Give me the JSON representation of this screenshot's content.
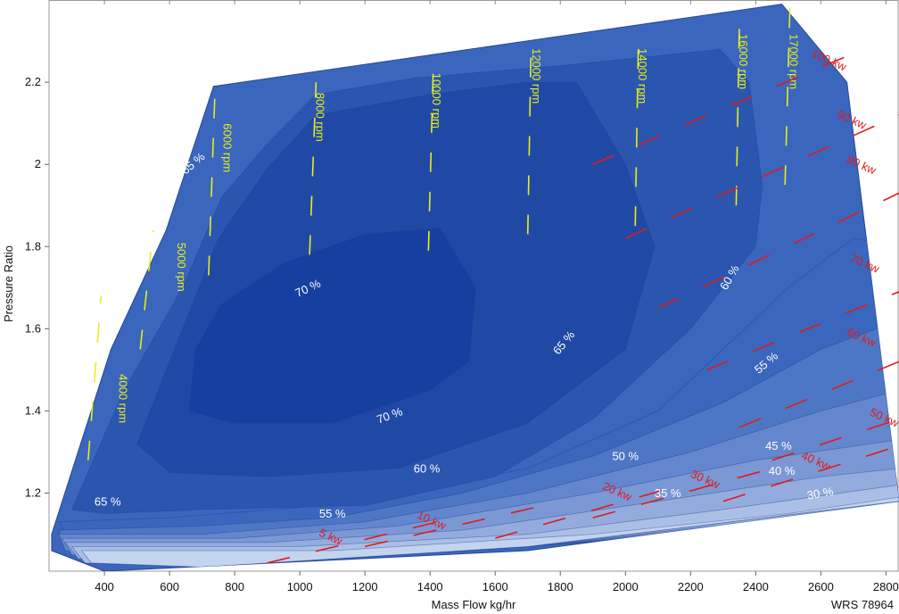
{
  "chart_data": {
    "type": "contour",
    "title": "",
    "xlabel": "Mass Flow kg/hr",
    "ylabel": "Pressure Ratio",
    "tag": "WRS 78964",
    "xlim": [
      230,
      2840
    ],
    "ylim": [
      1.01,
      2.4
    ],
    "xticks": [
      {
        "value": 400,
        "label": "400"
      },
      {
        "value": 600,
        "label": "600"
      },
      {
        "value": 800,
        "label": "800"
      },
      {
        "value": 1000,
        "label": "1000"
      },
      {
        "value": 1200,
        "label": "1200"
      },
      {
        "value": 1400,
        "label": "1400"
      },
      {
        "value": 1600,
        "label": "1600"
      },
      {
        "value": 1800,
        "label": "1800"
      },
      {
        "value": 2000,
        "label": "2000"
      },
      {
        "value": 2200,
        "label": "2200"
      },
      {
        "value": 2400,
        "label": "2400"
      },
      {
        "value": 2600,
        "label": "2600"
      },
      {
        "value": 2800,
        "label": "2800"
      }
    ],
    "yticks": [
      {
        "value": 1.2,
        "label": "1.2"
      },
      {
        "value": 1.4,
        "label": "1.4"
      },
      {
        "value": 1.6,
        "label": "1.6"
      },
      {
        "value": 1.8,
        "label": "1.8"
      },
      {
        "value": 2.0,
        "label": "2"
      },
      {
        "value": 2.2,
        "label": "2.2"
      }
    ],
    "map_boundary": [
      [
        238,
        1.1
      ],
      [
        420,
        1.55
      ],
      [
        590,
        1.84
      ],
      [
        735,
        2.19
      ],
      [
        2480,
        2.39
      ],
      [
        2680,
        2.2
      ],
      [
        2840,
        1.18
      ],
      [
        1700,
        1.06
      ],
      [
        400,
        1.01
      ],
      [
        238,
        1.06
      ]
    ],
    "efficiency_regions": [
      {
        "level": 65,
        "color": "#2b56b0",
        "points": [
          [
            300,
            1.16
          ],
          [
            460,
            1.45
          ],
          [
            640,
            1.7
          ],
          [
            760,
            1.92
          ],
          [
            900,
            2.05
          ],
          [
            1050,
            2.17
          ],
          [
            1350,
            2.21
          ],
          [
            1800,
            2.24
          ],
          [
            2290,
            2.28
          ],
          [
            2380,
            2.2
          ],
          [
            2420,
            1.95
          ],
          [
            2400,
            1.8
          ],
          [
            2200,
            1.6
          ],
          [
            1900,
            1.38
          ],
          [
            1600,
            1.24
          ],
          [
            1200,
            1.17
          ],
          [
            700,
            1.16
          ],
          [
            400,
            1.15
          ]
        ]
      },
      {
        "level": 70,
        "color": "#2049a6",
        "points": [
          [
            500,
            1.32
          ],
          [
            600,
            1.52
          ],
          [
            750,
            1.82
          ],
          [
            900,
            1.99
          ],
          [
            1050,
            2.12
          ],
          [
            1400,
            2.17
          ],
          [
            1700,
            2.2
          ],
          [
            1850,
            2.2
          ],
          [
            2000,
            2.0
          ],
          [
            2090,
            1.8
          ],
          [
            2000,
            1.55
          ],
          [
            1700,
            1.37
          ],
          [
            1300,
            1.26
          ],
          [
            900,
            1.24
          ],
          [
            600,
            1.25
          ]
        ]
      },
      {
        "level": 70,
        "color": "#1540a0",
        "points": [
          [
            660,
            1.4
          ],
          [
            680,
            1.55
          ],
          [
            760,
            1.66
          ],
          [
            950,
            1.76
          ],
          [
            1200,
            1.83
          ],
          [
            1430,
            1.845
          ],
          [
            1540,
            1.7
          ],
          [
            1520,
            1.52
          ],
          [
            1400,
            1.45
          ],
          [
            1100,
            1.37
          ],
          [
            800,
            1.37
          ]
        ]
      },
      {
        "level": 60,
        "color": "#3a66bd",
        "points": [
          [
            260,
            1.13
          ],
          [
            600,
            1.14
          ],
          [
            1000,
            1.165
          ],
          [
            1300,
            1.2
          ],
          [
            1700,
            1.26
          ],
          [
            2100,
            1.4
          ],
          [
            2300,
            1.55
          ],
          [
            2500,
            1.7
          ],
          [
            2700,
            1.82
          ],
          [
            2840,
            1.8
          ],
          [
            2840,
            1.12
          ],
          [
            1600,
            1.07
          ],
          [
            700,
            1.04
          ],
          [
            300,
            1.07
          ]
        ]
      },
      {
        "level": 55,
        "color": "#4d77c5",
        "points": [
          [
            260,
            1.11
          ],
          [
            700,
            1.12
          ],
          [
            1100,
            1.14
          ],
          [
            1500,
            1.2
          ],
          [
            1900,
            1.29
          ],
          [
            2300,
            1.42
          ],
          [
            2600,
            1.55
          ],
          [
            2840,
            1.62
          ],
          [
            2840,
            1.14
          ],
          [
            1700,
            1.07
          ],
          [
            700,
            1.03
          ],
          [
            280,
            1.07
          ]
        ]
      },
      {
        "level": 50,
        "color": "#6486ce",
        "points": [
          [
            260,
            1.1
          ],
          [
            700,
            1.1
          ],
          [
            1200,
            1.13
          ],
          [
            1700,
            1.2
          ],
          [
            2200,
            1.3
          ],
          [
            2600,
            1.4
          ],
          [
            2840,
            1.45
          ],
          [
            2840,
            1.15
          ],
          [
            1700,
            1.07
          ],
          [
            700,
            1.02
          ],
          [
            280,
            1.06
          ]
        ]
      },
      {
        "level": 45,
        "color": "#7b98d5",
        "points": [
          [
            270,
            1.09
          ],
          [
            800,
            1.09
          ],
          [
            1300,
            1.12
          ],
          [
            1900,
            1.2
          ],
          [
            2400,
            1.28
          ],
          [
            2840,
            1.33
          ],
          [
            2840,
            1.16
          ],
          [
            1700,
            1.07
          ],
          [
            700,
            1.02
          ],
          [
            300,
            1.05
          ]
        ]
      },
      {
        "level": 40,
        "color": "#93acdd",
        "points": [
          [
            280,
            1.08
          ],
          [
            900,
            1.08
          ],
          [
            1500,
            1.11
          ],
          [
            2100,
            1.18
          ],
          [
            2600,
            1.24
          ],
          [
            2840,
            1.26
          ],
          [
            2840,
            1.17
          ],
          [
            1700,
            1.07
          ],
          [
            700,
            1.02
          ],
          [
            320,
            1.04
          ]
        ]
      },
      {
        "level": 35,
        "color": "#abbfe6",
        "points": [
          [
            300,
            1.07
          ],
          [
            1000,
            1.07
          ],
          [
            1700,
            1.1
          ],
          [
            2300,
            1.16
          ],
          [
            2840,
            1.22
          ],
          [
            2840,
            1.18
          ],
          [
            1700,
            1.07
          ],
          [
            700,
            1.02
          ],
          [
            340,
            1.03
          ]
        ]
      },
      {
        "level": 30,
        "color": "#c4d3ee",
        "points": [
          [
            330,
            1.06
          ],
          [
            1100,
            1.06
          ],
          [
            1900,
            1.1
          ],
          [
            2500,
            1.15
          ],
          [
            2840,
            1.19
          ],
          [
            2840,
            1.18
          ],
          [
            1700,
            1.07
          ],
          [
            700,
            1.02
          ],
          [
            360,
            1.03
          ]
        ]
      }
    ],
    "efficiency_labels": [
      {
        "text": "65 %",
        "x": 680,
        "y": 1.995,
        "angle": -40
      },
      {
        "text": "70 %",
        "x": 1030,
        "y": 1.69,
        "angle": -25
      },
      {
        "text": "70 %",
        "x": 1280,
        "y": 1.38,
        "angle": -20
      },
      {
        "text": "65 %",
        "x": 1820,
        "y": 1.56,
        "angle": -50
      },
      {
        "text": "60 %",
        "x": 2330,
        "y": 1.72,
        "angle": -60
      },
      {
        "text": "60 %",
        "x": 1390,
        "y": 1.25,
        "angle": 0
      },
      {
        "text": "55 %",
        "x": 2440,
        "y": 1.51,
        "angle": -40
      },
      {
        "text": "55 %",
        "x": 1100,
        "y": 1.14,
        "angle": 0
      },
      {
        "text": "50 %",
        "x": 2000,
        "y": 1.28,
        "angle": 0
      },
      {
        "text": "45 %",
        "x": 2470,
        "y": 1.305,
        "angle": 0
      },
      {
        "text": "40 %",
        "x": 2480,
        "y": 1.245,
        "angle": 0
      },
      {
        "text": "35 %",
        "x": 2130,
        "y": 1.19,
        "angle": 0
      },
      {
        "text": "30 %",
        "x": 2600,
        "y": 1.19,
        "angle": -10
      },
      {
        "text": "65 %",
        "x": 410,
        "y": 1.17,
        "angle": 0
      }
    ],
    "speed_lines": [
      {
        "label": "4000 rpm",
        "points": [
          [
            350,
            1.28
          ],
          [
            390,
            1.68
          ]
        ],
        "label_at": [
          445,
          1.43
        ]
      },
      {
        "label": "5000 rpm",
        "points": [
          [
            510,
            1.55
          ],
          [
            550,
            1.84
          ]
        ],
        "label_at": [
          625,
          1.75
        ]
      },
      {
        "label": "6000 rpm",
        "points": [
          [
            720,
            1.73
          ],
          [
            740,
            2.19
          ]
        ],
        "label_at": [
          765,
          2.04
        ]
      },
      {
        "label": "8000 rpm",
        "points": [
          [
            1030,
            1.78
          ],
          [
            1050,
            2.2
          ]
        ],
        "label_at": [
          1050,
          2.115
        ]
      },
      {
        "label": "10000 rpm",
        "points": [
          [
            1395,
            1.79
          ],
          [
            1410,
            2.24
          ]
        ],
        "label_at": [
          1408,
          2.155
        ]
      },
      {
        "label": "12000 rpm",
        "points": [
          [
            1700,
            1.83
          ],
          [
            1710,
            2.28
          ]
        ],
        "label_at": [
          1715,
          2.215
        ]
      },
      {
        "label": "14000 rpm",
        "points": [
          [
            2030,
            1.85
          ],
          [
            2040,
            2.31
          ]
        ],
        "label_at": [
          2040,
          2.215
        ]
      },
      {
        "label": "16000 rpm",
        "points": [
          [
            2340,
            1.9
          ],
          [
            2350,
            2.35
          ]
        ],
        "label_at": [
          2350,
          2.25
        ]
      },
      {
        "label": "17000 rpm",
        "points": [
          [
            2490,
            1.95
          ],
          [
            2505,
            2.38
          ]
        ],
        "label_at": [
          2505,
          2.25
        ]
      }
    ],
    "power_lines": [
      {
        "label": "5 kw",
        "points": [
          [
            900,
            1.03
          ],
          [
            1450,
            1.135
          ]
        ],
        "label_at": [
          1090,
          1.085
        ]
      },
      {
        "label": "10 kw",
        "points": [
          [
            1200,
            1.07
          ],
          [
            1750,
            1.17
          ]
        ],
        "label_at": [
          1400,
          1.125
        ]
      },
      {
        "label": "20 kw",
        "points": [
          [
            1600,
            1.09
          ],
          [
            2150,
            1.215
          ]
        ],
        "label_at": [
          1970,
          1.195
        ]
      },
      {
        "label": "30 kw",
        "points": [
          [
            1900,
            1.14
          ],
          [
            2450,
            1.26
          ]
        ],
        "label_at": [
          2240,
          1.225
        ]
      },
      {
        "label": "40 kw",
        "points": [
          [
            2300,
            1.18
          ],
          [
            2820,
            1.31
          ]
        ],
        "label_at": [
          2580,
          1.27
        ]
      },
      {
        "label": "50 kw",
        "points": [
          [
            2450,
            1.28
          ],
          [
            2840,
            1.38
          ]
        ],
        "label_at": [
          2790,
          1.375
        ]
      },
      {
        "label": "60 kw",
        "points": [
          [
            2350,
            1.36
          ],
          [
            2840,
            1.52
          ]
        ],
        "label_at": [
          2720,
          1.57
        ]
      },
      {
        "label": "70 kw",
        "points": [
          [
            2250,
            1.5
          ],
          [
            2840,
            1.69
          ]
        ],
        "label_at": [
          2730,
          1.75
        ]
      },
      {
        "label": "80 kw",
        "points": [
          [
            2100,
            1.65
          ],
          [
            2840,
            1.93
          ]
        ],
        "label_at": [
          2720,
          1.99
        ]
      },
      {
        "label": "90 kw",
        "points": [
          [
            2000,
            1.82
          ],
          [
            2840,
            2.12
          ]
        ],
        "label_at": [
          2690,
          2.1
        ]
      },
      {
        "label": "100 kw",
        "points": [
          [
            1900,
            2.0
          ],
          [
            2700,
            2.27
          ]
        ],
        "label_at": [
          2620,
          2.245
        ]
      }
    ]
  }
}
